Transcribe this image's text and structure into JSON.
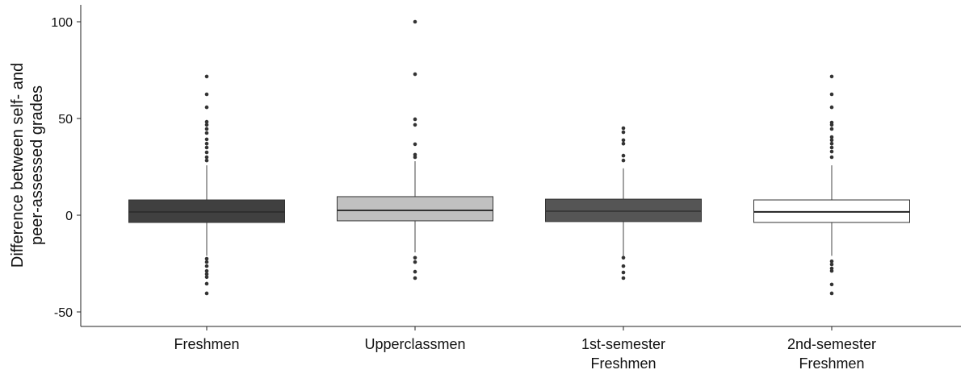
{
  "chart_data": {
    "type": "box",
    "y_label": [
      "Difference between self- and",
      "peer-assessed grades"
    ],
    "categories": [
      [
        "Freshmen"
      ],
      [
        "Upperclassmen"
      ],
      [
        "1st-semester",
        "Freshmen"
      ],
      [
        "2nd-semester",
        "Freshmen"
      ]
    ],
    "ylim": [
      -57.5,
      108
    ],
    "yticks": [
      -50,
      0,
      50,
      100
    ],
    "boxes": [
      {
        "color": "#404040",
        "median_color": "#2e2e2e",
        "whisker_low": -21,
        "q1": -3.75,
        "median": 1.7,
        "q3": 7.9,
        "whisker_high": 25.8,
        "outliers": [
          71.7,
          62.5,
          55.8,
          48.3,
          46.7,
          44.6,
          42.5,
          39.2,
          37,
          35,
          32.5,
          30,
          28.3,
          -22.5,
          -24.2,
          -26.3,
          -28.8,
          -30.4,
          -32,
          -35.4,
          -40.4
        ]
      },
      {
        "color": "#c0c0c0",
        "median_color": "#333333",
        "whisker_low": -19.2,
        "q1": -2.9,
        "median": 2.5,
        "q3": 9.6,
        "whisker_high": 27.9,
        "outliers": [
          100,
          72.9,
          49.6,
          46.7,
          36.7,
          31.3,
          30,
          -22,
          -24.2,
          -29.2,
          -32.5
        ]
      },
      {
        "color": "#555555",
        "median_color": "#3a3a3a",
        "whisker_low": -21.3,
        "q1": -3.3,
        "median": 2.1,
        "q3": 8.3,
        "whisker_high": 24.2,
        "outliers": [
          45,
          42.9,
          38.8,
          37,
          30.8,
          28.3,
          -22,
          -26.3,
          -29.6,
          -32.5
        ]
      },
      {
        "color": "#ffffff",
        "median_color": "#222222",
        "whisker_low": -21,
        "q1": -3.75,
        "median": 1.7,
        "q3": 7.9,
        "whisker_high": 25.8,
        "outliers": [
          71.7,
          62.5,
          55.8,
          47.9,
          46.7,
          44.6,
          40.4,
          38.8,
          37,
          35,
          32.9,
          30,
          -23.8,
          -25.4,
          -27.5,
          -28.8,
          -35.8,
          -40.4
        ]
      }
    ]
  }
}
